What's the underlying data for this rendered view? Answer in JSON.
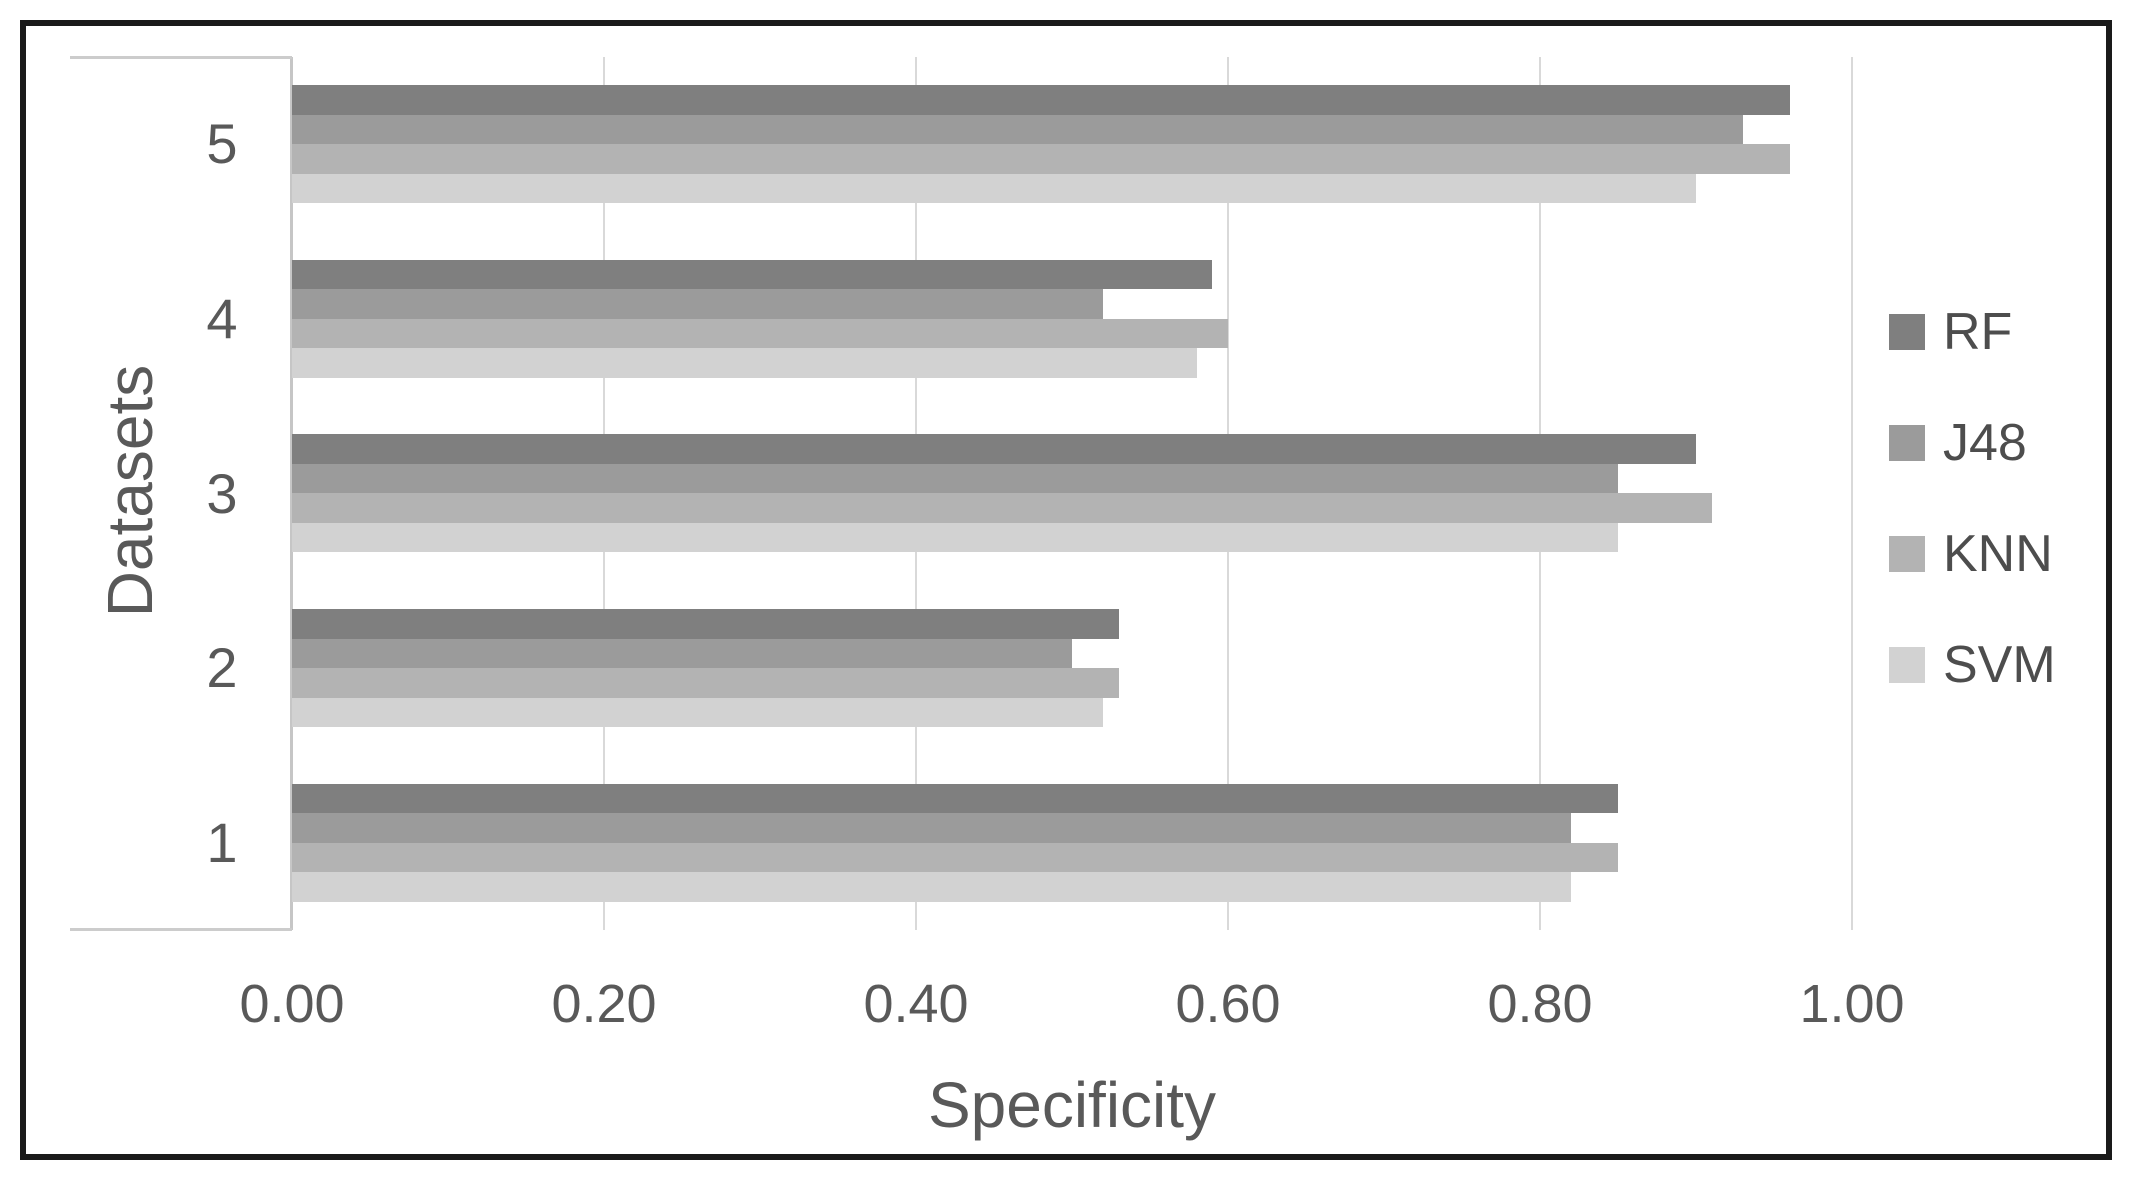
{
  "figure": {
    "background": "#ffffff",
    "frame_color": "#1a1a1a"
  },
  "chart_data": {
    "type": "bar",
    "orientation": "horizontal",
    "title": "",
    "xlabel": "Specificity",
    "ylabel": "Datasets",
    "xlim": [
      0,
      1
    ],
    "xticks": [
      "0.00",
      "0.20",
      "0.40",
      "0.60",
      "0.80",
      "1.00"
    ],
    "grid": "vertical-only",
    "legend_position": "right-center",
    "categories": [
      "1",
      "2",
      "3",
      "4",
      "5"
    ],
    "category_order_top_to_bottom": [
      "5",
      "4",
      "3",
      "2",
      "1"
    ],
    "series": [
      {
        "name": "RF",
        "color": "#7f7f7f",
        "values": [
          0.85,
          0.53,
          0.9,
          0.59,
          0.96
        ]
      },
      {
        "name": "J48",
        "color": "#9b9b9b",
        "values": [
          0.82,
          0.5,
          0.85,
          0.52,
          0.93
        ]
      },
      {
        "name": "KNN",
        "color": "#b3b3b3",
        "values": [
          0.85,
          0.53,
          0.91,
          0.6,
          0.96
        ]
      },
      {
        "name": "SVM",
        "color": "#d2d2d2",
        "values": [
          0.82,
          0.52,
          0.85,
          0.58,
          0.9
        ]
      }
    ],
    "axis_color": "#c6c6c6",
    "gridline_color": "#d9d9d9",
    "text_color": "#595959",
    "legend_text_color": "#4d4d4d"
  }
}
